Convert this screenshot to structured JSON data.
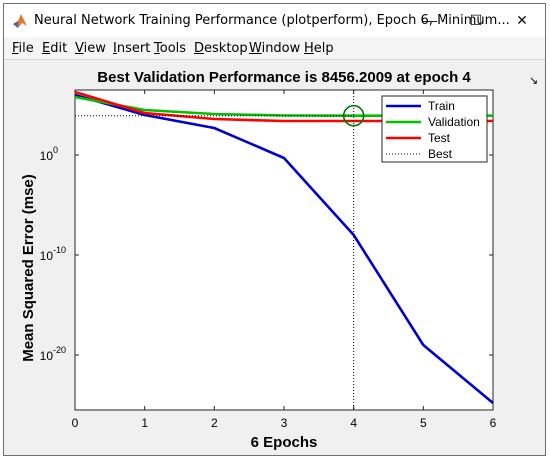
{
  "window": {
    "title": "Neural Network Training Performance (plotperform), Epoch 6, Minimum...",
    "minimize_glyph": "—",
    "maximize_glyph": "☐",
    "close_glyph": "✕",
    "app_icon": "matlab-logo-icon",
    "dock_glyph": "↘"
  },
  "menu": {
    "items": [
      {
        "label": "File"
      },
      {
        "label": "Edit"
      },
      {
        "label": "View"
      },
      {
        "label": "Insert"
      },
      {
        "label": "Tools"
      },
      {
        "label": "Desktop"
      },
      {
        "label": "Window"
      },
      {
        "label": "Help"
      }
    ]
  },
  "chart_data": {
    "type": "line",
    "title": "Best Validation Performance is 8456.2009 at epoch 4",
    "xlabel": "6 Epochs",
    "ylabel": "Mean Squared Error  (mse)",
    "xlim": [
      0,
      6
    ],
    "ylim_log10": [
      -25.5,
      6.5
    ],
    "y_scale": "log",
    "x_ticks": [
      "0",
      "1",
      "2",
      "3",
      "4",
      "5",
      "6"
    ],
    "y_ticks": [
      {
        "exp": 0,
        "base": "10",
        "sup": "0"
      },
      {
        "exp": -10,
        "base": "10",
        "sup": "-10"
      },
      {
        "exp": -20,
        "base": "10",
        "sup": "-20"
      }
    ],
    "series": [
      {
        "name": "Train",
        "color": "#0000cc",
        "x": [
          0,
          1,
          2,
          3,
          4,
          5,
          6
        ],
        "log10_y": [
          6.0,
          4.0,
          2.7,
          -0.3,
          -8.0,
          -19.0,
          -24.8
        ]
      },
      {
        "name": "Validation",
        "color": "#00c000",
        "x": [
          0,
          1,
          2,
          3,
          4,
          5,
          6
        ],
        "log10_y": [
          5.8,
          4.5,
          4.1,
          3.95,
          3.93,
          3.93,
          3.93
        ]
      },
      {
        "name": "Test",
        "color": "#ff0000",
        "x": [
          0,
          1,
          2,
          3,
          4,
          5,
          6
        ],
        "log10_y": [
          6.3,
          4.2,
          3.6,
          3.4,
          3.4,
          3.4,
          3.4
        ]
      }
    ],
    "best": {
      "name": "Best",
      "epoch": 4,
      "value": 8456.2009,
      "color": "#000000"
    },
    "legend_position": "top-right",
    "grid": false
  }
}
